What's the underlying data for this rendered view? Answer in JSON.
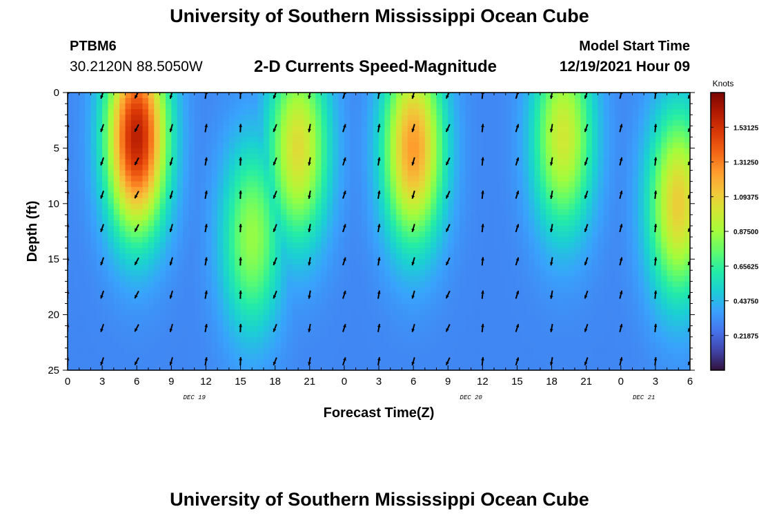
{
  "header": {
    "title": "University of Southern Mississippi Ocean Cube",
    "station": "PTBM6",
    "coords": "30.2120N  88.5050W",
    "subtitle": "2-D Currents Speed-Magnitude",
    "model_start_label": "Model Start Time",
    "model_start_value": "12/19/2021 Hour 09",
    "footer_title": "University of Southern Mississippi Ocean Cube"
  },
  "chart_data": {
    "type": "heatmap",
    "title": "2-D Currents Speed-Magnitude",
    "xlabel": "Forecast Time(Z)",
    "ylabel": "Depth (ft)",
    "x_range_hours": [
      0,
      54
    ],
    "y_range_ft": [
      0,
      25
    ],
    "x_ticks": [
      "0",
      "3",
      "6",
      "9",
      "12",
      "15",
      "18",
      "21",
      "0",
      "3",
      "6",
      "9",
      "12",
      "15",
      "18",
      "21",
      "0",
      "3",
      "6"
    ],
    "y_ticks": [
      "0",
      "5",
      "10",
      "15",
      "20",
      "25"
    ],
    "date_labels": [
      {
        "label": "DEC 19",
        "hour": 11
      },
      {
        "label": "DEC 20",
        "hour": 35
      },
      {
        "label": "DEC 21",
        "hour": 50
      }
    ],
    "colorbar": {
      "title": "Knots",
      "range": [
        0,
        1.75
      ],
      "tick_values": [
        1.53125,
        1.3125,
        1.09375,
        0.875,
        0.65625,
        0.4375,
        0.21875
      ],
      "tick_labels": [
        "1.53125",
        "1.31250",
        "1.09375",
        "0.87500",
        "0.65625",
        "0.43750",
        "0.21875"
      ],
      "colors": [
        "#30123b",
        "#4145ab",
        "#4675ed",
        "#39a2fc",
        "#1bcfd4",
        "#24eca6",
        "#61fc6c",
        "#a4fc3b",
        "#d1e834",
        "#f3c63a",
        "#fe9b2d",
        "#f36315",
        "#d93806",
        "#b11901",
        "#7a0402"
      ]
    },
    "speed_peaks": [
      {
        "hour": 6,
        "depth_ft": 4,
        "speed_kn": 1.6
      },
      {
        "hour": 20,
        "depth_ft": 5,
        "speed_kn": 1.05
      },
      {
        "hour": 16,
        "depth_ft": 13,
        "speed_kn": 0.85
      },
      {
        "hour": 30,
        "depth_ft": 5,
        "speed_kn": 1.25
      },
      {
        "hour": 43,
        "depth_ft": 4,
        "speed_kn": 1.0
      },
      {
        "hour": 53,
        "depth_ft": 10,
        "speed_kn": 1.1
      }
    ]
  }
}
